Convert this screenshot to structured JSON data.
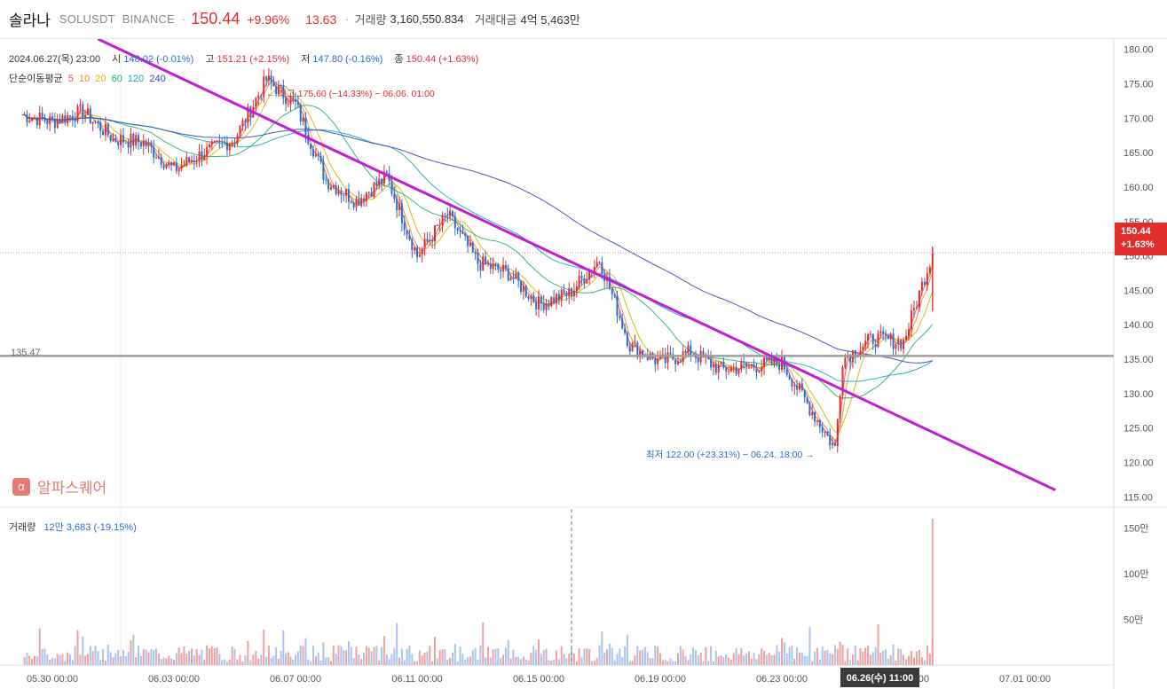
{
  "header": {
    "name": "솔라나",
    "symbol": "SOLUSDT",
    "exchange": "BINANCE",
    "price": "150.44",
    "change_pct": "+9.96%",
    "change_abs": "13.63",
    "volume_label": "거래량",
    "volume_value": "3,160,550.834",
    "turnover_label": "거래대금",
    "turnover_value": "4억 5,463만"
  },
  "ohlc": {
    "date": "2024.06.27(목) 23:00",
    "open_label": "시",
    "open": "148.02",
    "open_pct": "(-0.01%)",
    "high_label": "고",
    "high": "151.21",
    "high_pct": "(+2.15%)",
    "low_label": "저",
    "low": "147.80",
    "low_pct": "(-0.16%)",
    "close_label": "종",
    "close": "150.44",
    "close_pct": "(+1.63%)"
  },
  "ma": {
    "label": "단순이동평균",
    "periods": [
      {
        "value": "5",
        "color": "#e2564f"
      },
      {
        "value": "10",
        "color": "#e88b2e"
      },
      {
        "value": "20",
        "color": "#d9b400"
      },
      {
        "value": "60",
        "color": "#20b36b"
      },
      {
        "value": "120",
        "color": "#18a6c2"
      },
      {
        "value": "240",
        "color": "#3344bb"
      }
    ]
  },
  "annotations": {
    "high": "← 최고 175.60 (−14.33%) − 06.06. 01:00",
    "low": "최저 122.00 (+23.31%) − 06.24. 18:00 →",
    "support_label": "135.47"
  },
  "watermark": {
    "icon": "alpha-square-icon",
    "icon_glyph": "α",
    "text": "알파스퀘어"
  },
  "last_price_tag": {
    "price": "150.44",
    "pct": "+1.63%"
  },
  "volume_panel": {
    "label": "거래량",
    "value": "12만 3,683",
    "pct": "(-19.15%)"
  },
  "crosshair_time": "06.26(수) 11:00",
  "colors": {
    "up": "#e22d2d",
    "down": "#2b6ccf",
    "trendline": "#c21fd4",
    "support": "#9e9e9e"
  },
  "chart_data": {
    "type": "candlestick",
    "timeframe": "1H",
    "x_ticks": [
      "05.30 00:00",
      "06.03 00:00",
      "06.07 00:00",
      "06.11 00:00",
      "06.15 00:00",
      "06.19 00:00",
      "06.23 00:00",
      "06.27 00:00",
      "07.01 00:00"
    ],
    "y_ticks": [
      "180.00",
      "175.00",
      "170.00",
      "165.00",
      "160.00",
      "155.00",
      "150.00",
      "145.00",
      "140.00",
      "135.00",
      "130.00",
      "125.00",
      "120.00",
      "115.00"
    ],
    "ylim": [
      113.5,
      181.5
    ],
    "volume_ticks": [
      "150만",
      "100만",
      "50만"
    ],
    "price_path": [
      {
        "t": "05.29 00:00",
        "p": 170.5
      },
      {
        "t": "05.30 00:00",
        "p": 169.5
      },
      {
        "t": "05.31 00:00",
        "p": 171.0
      },
      {
        "t": "06.01 00:00",
        "p": 167.0
      },
      {
        "t": "06.02 00:00",
        "p": 166.5
      },
      {
        "t": "06.03 00:00",
        "p": 162.5
      },
      {
        "t": "06.04 00:00",
        "p": 165.0
      },
      {
        "t": "06.05 00:00",
        "p": 167.0
      },
      {
        "t": "06.06 01:00",
        "p": 175.6
      },
      {
        "t": "06.07 00:00",
        "p": 172.0
      },
      {
        "t": "06.08 00:00",
        "p": 161.0
      },
      {
        "t": "06.09 00:00",
        "p": 158.0
      },
      {
        "t": "06.10 00:00",
        "p": 161.5
      },
      {
        "t": "06.11 00:00",
        "p": 150.0
      },
      {
        "t": "06.12 00:00",
        "p": 156.0
      },
      {
        "t": "06.13 00:00",
        "p": 149.0
      },
      {
        "t": "06.14 00:00",
        "p": 147.5
      },
      {
        "t": "06.15 00:00",
        "p": 143.0
      },
      {
        "t": "06.16 00:00",
        "p": 144.5
      },
      {
        "t": "06.17 00:00",
        "p": 149.5
      },
      {
        "t": "06.18 00:00",
        "p": 137.0
      },
      {
        "t": "06.19 00:00",
        "p": 134.5
      },
      {
        "t": "06.20 00:00",
        "p": 136.0
      },
      {
        "t": "06.21 00:00",
        "p": 133.5
      },
      {
        "t": "06.22 00:00",
        "p": 134.0
      },
      {
        "t": "06.23 00:00",
        "p": 134.5
      },
      {
        "t": "06.24 18:00",
        "p": 122.0
      },
      {
        "t": "06.25 00:00",
        "p": 135.0
      },
      {
        "t": "06.26 00:00",
        "p": 138.0
      },
      {
        "t": "06.27 00:00",
        "p": 137.5
      },
      {
        "t": "06.27 23:00",
        "p": 150.44
      }
    ],
    "trendline": {
      "from": {
        "t": "05.31 12:00",
        "p": 181.5
      },
      "to": {
        "t": "07.02 00:00",
        "p": 116.0
      }
    },
    "support_line": 135.47,
    "high": {
      "value": 175.6,
      "time": "06.06. 01:00"
    },
    "low": {
      "value": 122.0,
      "time": "06.24. 18:00"
    }
  }
}
